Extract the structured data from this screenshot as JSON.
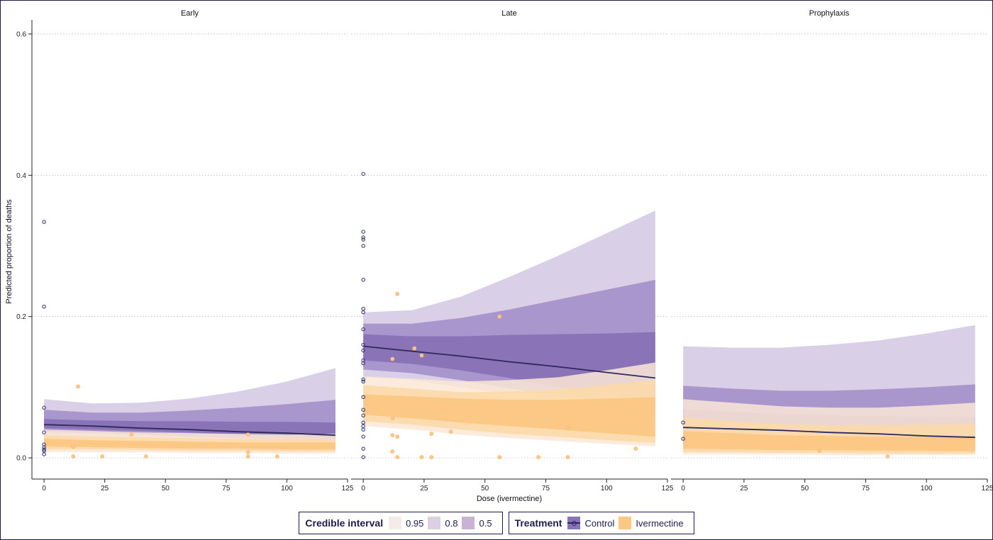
{
  "chart_data": {
    "type": "line",
    "xlabel": "Dose (ivermectine)",
    "ylabel": "Predicted proportion of deaths",
    "xlim": [
      -5,
      125
    ],
    "ylim": [
      -0.03,
      0.62
    ],
    "x_ticks": [
      0,
      25,
      50,
      75,
      100,
      125
    ],
    "y_ticks": [
      0.0,
      0.2,
      0.4,
      0.6
    ],
    "y_tick_labels": [
      "0.0",
      "0.2",
      "0.4",
      "0.6"
    ],
    "grid": "horizontal dotted",
    "legend_position": "bottom",
    "colors": {
      "control_line": "#2b2a5a",
      "control_point": "#3b3f7a",
      "ivermectine_point": "#fbc88a",
      "control_band_95": "#d9cfe7",
      "control_band_80": "#a896cc",
      "control_band_50": "#8b73b8",
      "iver_band_95": "#fbe8d6",
      "iver_band_80": "#fcd9a9",
      "iver_band_50": "#fcc783"
    },
    "panels": [
      {
        "name": "Early",
        "control": {
          "x": [
            0,
            20,
            40,
            60,
            80,
            100,
            120
          ],
          "median": [
            0.047,
            0.045,
            0.042,
            0.04,
            0.037,
            0.035,
            0.032
          ],
          "ci95_low": [
            0.03,
            0.03,
            0.028,
            0.025,
            0.022,
            0.02,
            0.018
          ],
          "ci95_high": [
            0.083,
            0.077,
            0.078,
            0.084,
            0.094,
            0.108,
            0.127
          ],
          "ci80_low": [
            0.036,
            0.035,
            0.033,
            0.03,
            0.028,
            0.026,
            0.024
          ],
          "ci80_high": [
            0.068,
            0.064,
            0.064,
            0.067,
            0.071,
            0.076,
            0.082
          ],
          "ci50_low": [
            0.042,
            0.04,
            0.038,
            0.036,
            0.033,
            0.031,
            0.028
          ],
          "ci50_high": [
            0.055,
            0.053,
            0.052,
            0.052,
            0.051,
            0.051,
            0.05
          ]
        },
        "ivermectine": {
          "x": [
            0,
            20,
            40,
            60,
            80,
            100,
            120
          ],
          "median": [
            0.021,
            0.02,
            0.019,
            0.018,
            0.017,
            0.016,
            0.016
          ],
          "ci95_low": [
            0.008,
            0.008,
            0.008,
            0.007,
            0.007,
            0.006,
            0.006
          ],
          "ci95_high": [
            0.04,
            0.038,
            0.036,
            0.035,
            0.034,
            0.033,
            0.034
          ],
          "ci80_low": [
            0.012,
            0.012,
            0.011,
            0.01,
            0.01,
            0.009,
            0.009
          ],
          "ci80_high": [
            0.032,
            0.03,
            0.029,
            0.028,
            0.027,
            0.027,
            0.027
          ],
          "ci50_low": [
            0.016,
            0.015,
            0.014,
            0.013,
            0.013,
            0.012,
            0.012
          ],
          "ci50_high": [
            0.027,
            0.025,
            0.024,
            0.023,
            0.022,
            0.022,
            0.022
          ]
        },
        "control_points": [
          [
            0,
            0.334
          ],
          [
            0,
            0.214
          ],
          [
            0,
            0.071
          ],
          [
            0,
            0.036
          ],
          [
            0,
            0.019
          ],
          [
            0,
            0.015
          ],
          [
            0,
            0.012
          ],
          [
            0,
            0.01
          ],
          [
            0,
            0.005
          ]
        ],
        "ivermectine_points": [
          [
            14,
            0.101
          ],
          [
            36,
            0.033
          ],
          [
            84,
            0.033
          ],
          [
            12,
            0.016
          ],
          [
            12,
            0.002
          ],
          [
            24,
            0.002
          ],
          [
            42,
            0.002
          ],
          [
            84,
            0.002
          ],
          [
            96,
            0.002
          ],
          [
            84,
            0.008
          ]
        ]
      },
      {
        "name": "Late",
        "control": {
          "x": [
            0,
            20,
            40,
            60,
            80,
            100,
            120
          ],
          "median": [
            0.158,
            0.151,
            0.144,
            0.136,
            0.129,
            0.121,
            0.113
          ],
          "ci95_low": [
            0.115,
            0.11,
            0.1,
            0.09,
            0.08,
            0.072,
            0.065
          ],
          "ci95_high": [
            0.206,
            0.209,
            0.228,
            0.256,
            0.286,
            0.318,
            0.35
          ],
          "ci80_low": [
            0.125,
            0.12,
            0.11,
            0.098,
            0.09,
            0.08,
            0.073
          ],
          "ci80_high": [
            0.19,
            0.19,
            0.198,
            0.21,
            0.224,
            0.238,
            0.252
          ],
          "ci50_low": [
            0.138,
            0.133,
            0.124,
            0.113,
            0.1,
            0.09,
            0.08
          ],
          "ci50_high": [
            0.175,
            0.172,
            0.172,
            0.174,
            0.175,
            0.176,
            0.178
          ]
        },
        "ivermectine": {
          "x": [
            0,
            20,
            40,
            60,
            80,
            100,
            120
          ],
          "median": [
            0.075,
            0.072,
            0.068,
            0.064,
            0.06,
            0.056,
            0.052
          ],
          "ci95_low": [
            0.045,
            0.04,
            0.033,
            0.028,
            0.024,
            0.02,
            0.016
          ],
          "ci95_high": [
            0.115,
            0.112,
            0.108,
            0.11,
            0.114,
            0.124,
            0.135
          ],
          "ci80_low": [
            0.052,
            0.047,
            0.04,
            0.034,
            0.03,
            0.025,
            0.021
          ],
          "ci80_high": [
            0.103,
            0.098,
            0.093,
            0.094,
            0.097,
            0.103,
            0.11
          ],
          "ci50_low": [
            0.061,
            0.056,
            0.05,
            0.045,
            0.04,
            0.035,
            0.03
          ],
          "ci50_high": [
            0.09,
            0.087,
            0.084,
            0.082,
            0.082,
            0.084,
            0.086
          ]
        },
        "control_points": [
          [
            0,
            0.402
          ],
          [
            0,
            0.32
          ],
          [
            0,
            0.312
          ],
          [
            0,
            0.309
          ],
          [
            0,
            0.3
          ],
          [
            0,
            0.252
          ],
          [
            0,
            0.211
          ],
          [
            0,
            0.206
          ],
          [
            0,
            0.182
          ],
          [
            0,
            0.16
          ],
          [
            0,
            0.152
          ],
          [
            0,
            0.138
          ],
          [
            0,
            0.134
          ],
          [
            0,
            0.111
          ],
          [
            0,
            0.108
          ],
          [
            0,
            0.086
          ],
          [
            0,
            0.068
          ],
          [
            0,
            0.06
          ],
          [
            0,
            0.05
          ],
          [
            0,
            0.045
          ],
          [
            0,
            0.04
          ],
          [
            0,
            0.03
          ],
          [
            0,
            0.013
          ],
          [
            0,
            0.001
          ]
        ],
        "ivermectine_points": [
          [
            14,
            0.232
          ],
          [
            56,
            0.2
          ],
          [
            21,
            0.155
          ],
          [
            24,
            0.145
          ],
          [
            12,
            0.14
          ],
          [
            12,
            0.056
          ],
          [
            28,
            0.034
          ],
          [
            36,
            0.037
          ],
          [
            12,
            0.032
          ],
          [
            14,
            0.03
          ],
          [
            84,
            0.042
          ],
          [
            112,
            0.013
          ],
          [
            12,
            0.009
          ],
          [
            14,
            0.001
          ],
          [
            24,
            0.001
          ],
          [
            28,
            0.001
          ],
          [
            56,
            0.001
          ],
          [
            72,
            0.001
          ],
          [
            84,
            0.001
          ]
        ]
      },
      {
        "name": "Prophylaxis",
        "control": {
          "x": [
            0,
            20,
            40,
            60,
            80,
            100,
            120
          ],
          "median": [
            0.043,
            0.041,
            0.039,
            0.036,
            0.034,
            0.031,
            0.029
          ],
          "ci95_low": [
            0.015,
            0.015,
            0.014,
            0.013,
            0.012,
            0.011,
            0.01
          ],
          "ci95_high": [
            0.158,
            0.156,
            0.156,
            0.16,
            0.166,
            0.176,
            0.188
          ],
          "ci80_low": [
            0.025,
            0.024,
            0.022,
            0.02,
            0.019,
            0.017,
            0.016
          ],
          "ci80_high": [
            0.102,
            0.098,
            0.095,
            0.095,
            0.097,
            0.1,
            0.104
          ],
          "ci50_low": [
            0.033,
            0.031,
            0.029,
            0.027,
            0.025,
            0.023,
            0.021
          ],
          "ci50_high": [
            0.069,
            0.065,
            0.062,
            0.06,
            0.059,
            0.058,
            0.058
          ]
        },
        "ivermectine": {
          "x": [
            0,
            20,
            40,
            60,
            80,
            100,
            120
          ],
          "median": [
            0.021,
            0.02,
            0.019,
            0.018,
            0.017,
            0.016,
            0.016
          ],
          "ci95_low": [
            0.005,
            0.005,
            0.005,
            0.004,
            0.004,
            0.004,
            0.004
          ],
          "ci95_high": [
            0.083,
            0.078,
            0.073,
            0.071,
            0.071,
            0.074,
            0.078
          ],
          "ci80_low": [
            0.008,
            0.008,
            0.007,
            0.007,
            0.006,
            0.006,
            0.006
          ],
          "ci80_high": [
            0.057,
            0.052,
            0.048,
            0.046,
            0.046,
            0.047,
            0.048
          ],
          "ci50_low": [
            0.013,
            0.012,
            0.011,
            0.011,
            0.01,
            0.01,
            0.009
          ],
          "ci50_high": [
            0.038,
            0.035,
            0.032,
            0.031,
            0.03,
            0.03,
            0.031
          ]
        },
        "control_points": [
          [
            0,
            0.05
          ],
          [
            0,
            0.027
          ]
        ],
        "ivermectine_points": [
          [
            56,
            0.01
          ],
          [
            84,
            0.002
          ]
        ]
      }
    ]
  },
  "legend": {
    "ci_title": "Credible interval",
    "ci_items": [
      {
        "label": "0.95",
        "color": "#f5ece8"
      },
      {
        "label": "0.8",
        "color": "#dccfe0"
      },
      {
        "label": "0.5",
        "color": "#c8b3d2"
      }
    ],
    "treatment_title": "Treatment",
    "treatment_items": [
      {
        "label": "Control",
        "color": "#8b73b8"
      },
      {
        "label": "Ivermectine",
        "color": "#fcc783"
      }
    ]
  }
}
